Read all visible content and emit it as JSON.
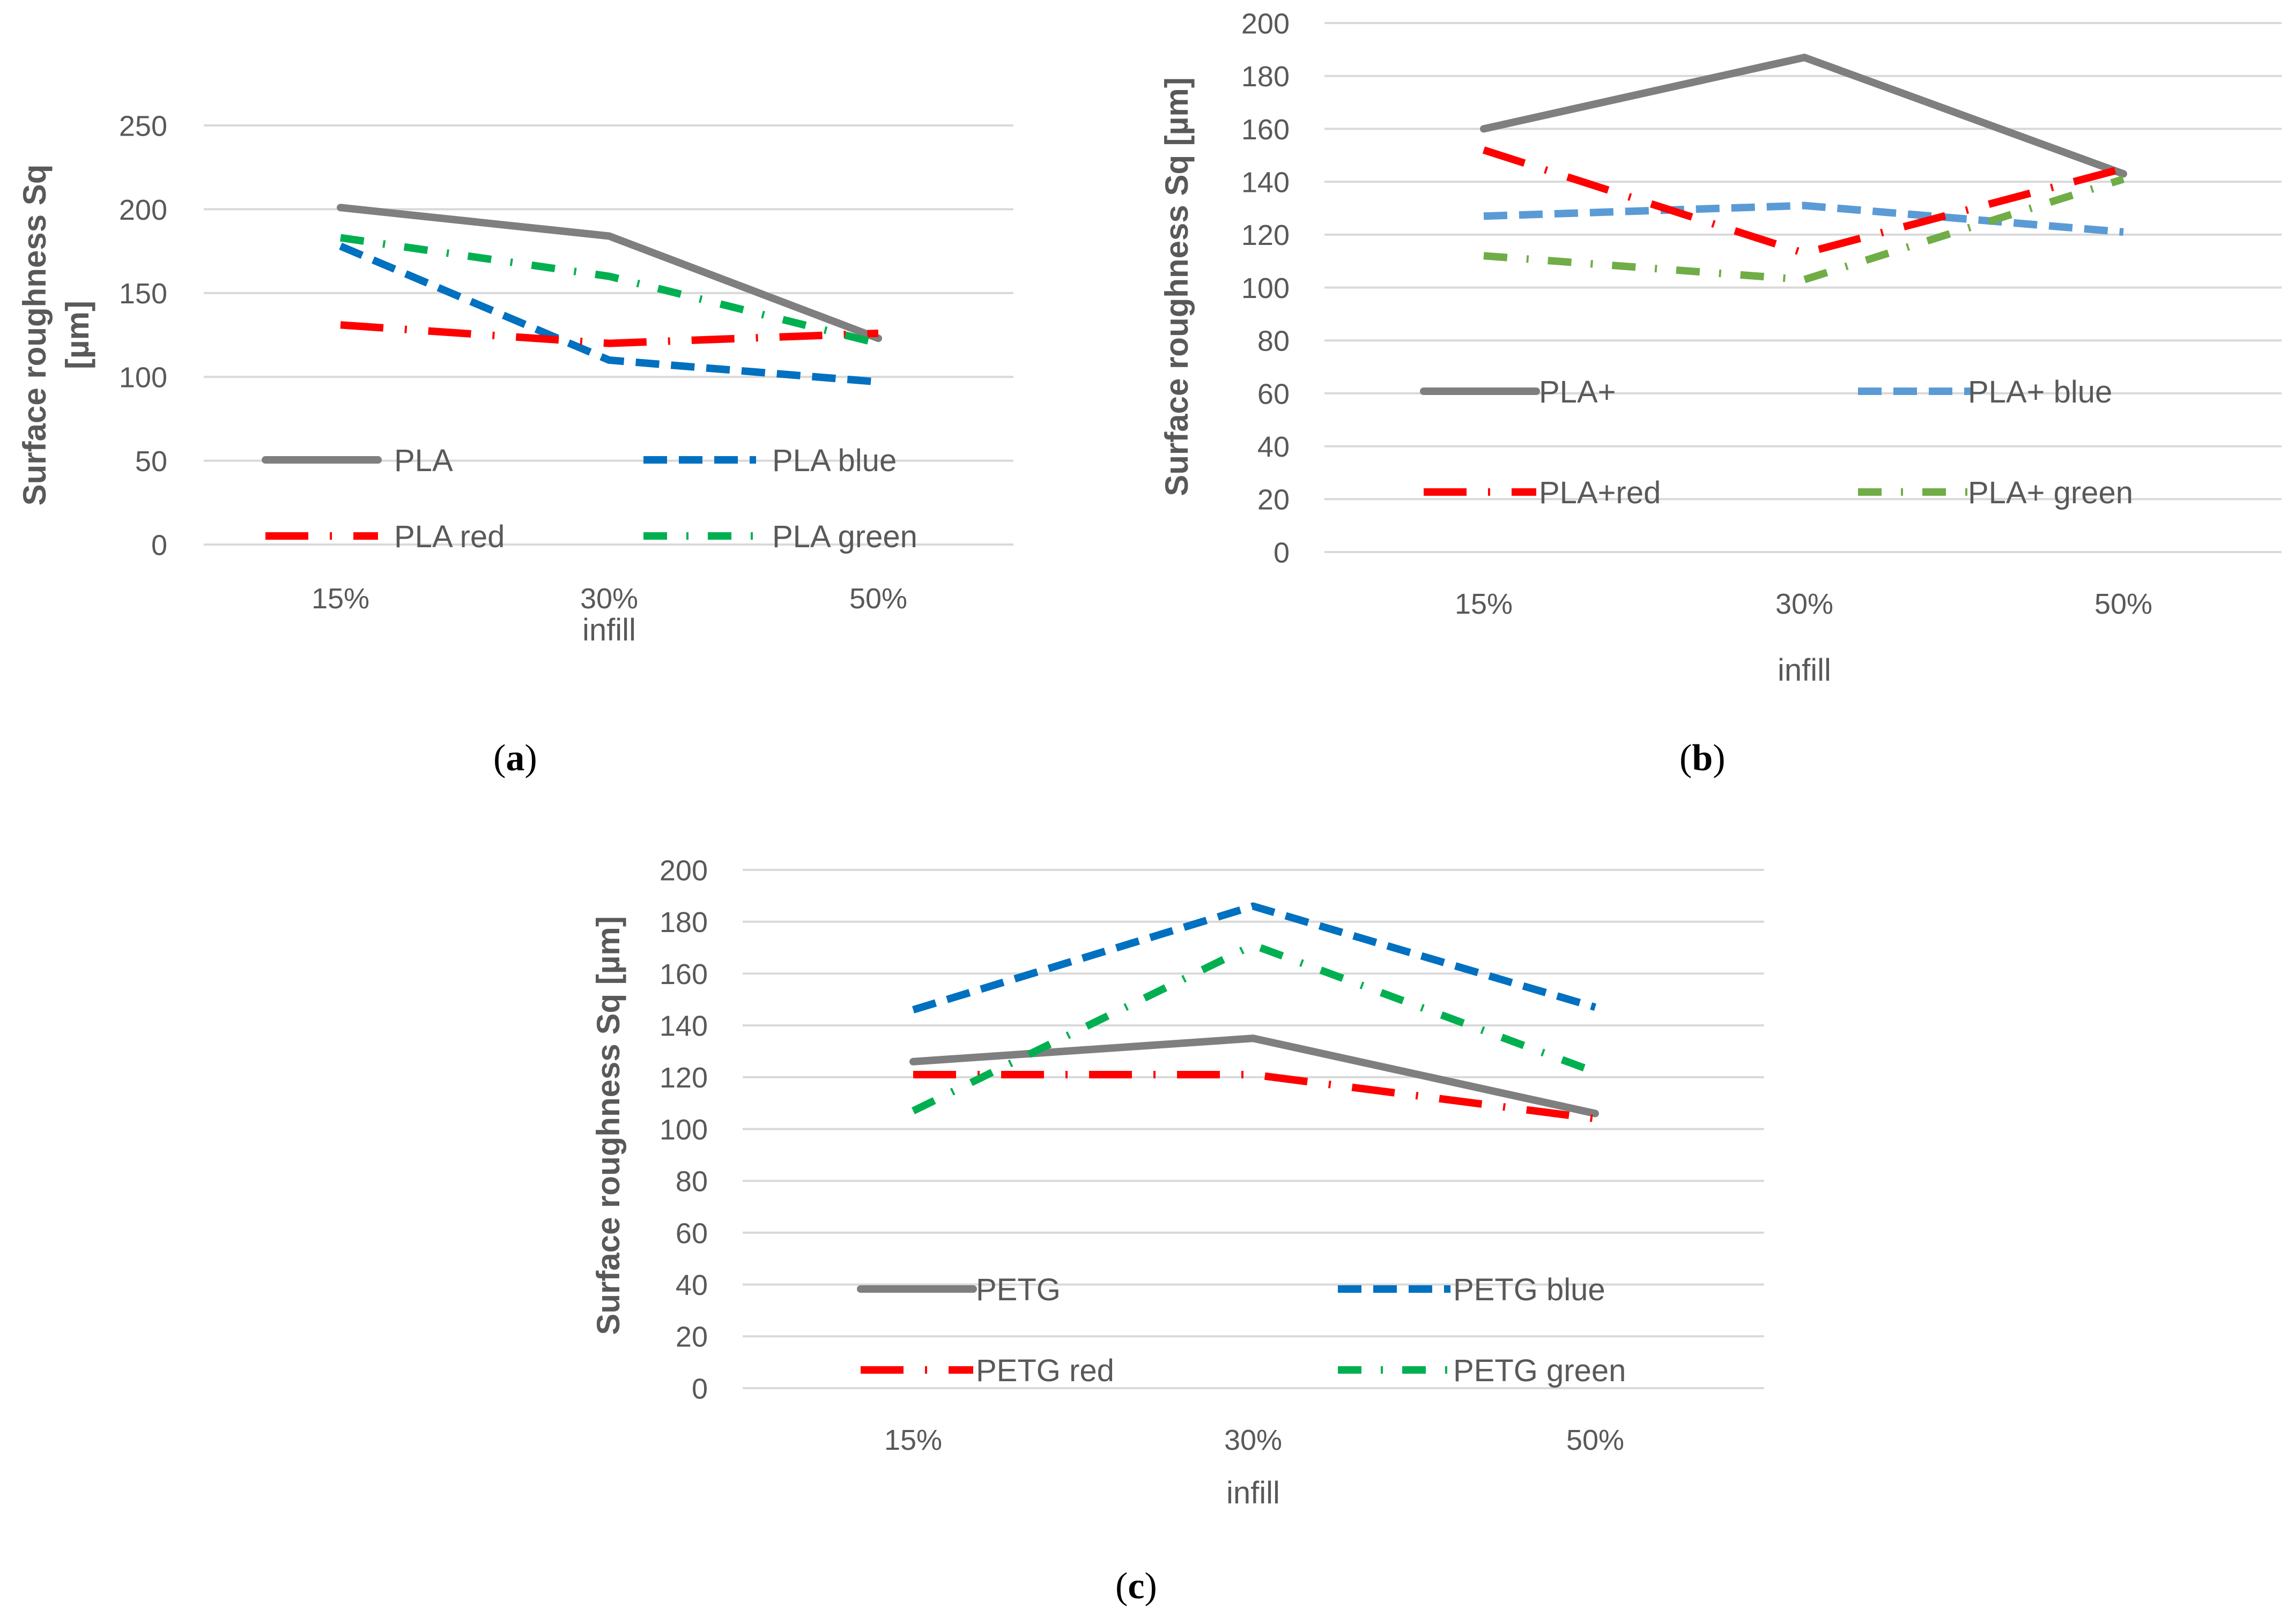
{
  "figure": {
    "captions": [
      "a",
      "b",
      "c"
    ]
  },
  "chart_data": [
    {
      "type": "line",
      "panel": "a",
      "title": "",
      "xlabel": "infill",
      "ylabel": "Surface roughness Sq [µm]",
      "categories": [
        "15%",
        "30%",
        "50%"
      ],
      "yticks": [
        "0",
        "50",
        "100",
        "150",
        "200",
        "250"
      ],
      "ylim": [
        0,
        250
      ],
      "grid": true,
      "legend": "bottom-inside",
      "series": [
        {
          "name": "PLA",
          "values": [
            201,
            184,
            123
          ],
          "color": "#7f7f7f",
          "style": "solid"
        },
        {
          "name": "PLA blue",
          "values": [
            178,
            110,
            97
          ],
          "color": "#0070c0",
          "style": "dash"
        },
        {
          "name": "PLA red",
          "values": [
            131,
            120,
            126
          ],
          "color": "#ff0000",
          "style": "longdashdot"
        },
        {
          "name": "PLA green",
          "values": [
            183,
            160,
            120
          ],
          "color": "#00b050",
          "style": "dashdot"
        }
      ]
    },
    {
      "type": "line",
      "panel": "b",
      "title": "",
      "xlabel": "infill",
      "ylabel": "Surface roughness Sq [µm]",
      "categories": [
        "15%",
        "30%",
        "50%"
      ],
      "yticks": [
        "0",
        "20",
        "40",
        "60",
        "80",
        "100",
        "120",
        "140",
        "160",
        "180",
        "200"
      ],
      "ylim": [
        0,
        200
      ],
      "grid": true,
      "legend": "bottom-inside",
      "series": [
        {
          "name": "PLA+",
          "values": [
            160,
            187,
            143
          ],
          "color": "#7f7f7f",
          "style": "solid"
        },
        {
          "name": "PLA+ blue",
          "values": [
            127,
            131,
            121
          ],
          "color": "#5b9bd5",
          "style": "dash"
        },
        {
          "name": "PLA+red",
          "values": [
            152,
            113,
            145
          ],
          "color": "#ff0000",
          "style": "longdashdot"
        },
        {
          "name": "PLA+ green",
          "values": [
            112,
            103,
            141
          ],
          "color": "#70ad47",
          "style": "dashdot"
        }
      ]
    },
    {
      "type": "line",
      "panel": "c",
      "title": "",
      "xlabel": "infill",
      "ylabel": "Surface roughness Sq [µm]",
      "categories": [
        "15%",
        "30%",
        "50%"
      ],
      "yticks": [
        "0",
        "20",
        "40",
        "60",
        "80",
        "100",
        "120",
        "140",
        "160",
        "180",
        "200"
      ],
      "ylim": [
        0,
        200
      ],
      "grid": true,
      "legend": "bottom-inside",
      "series": [
        {
          "name": "PETG",
          "values": [
            126,
            135,
            106
          ],
          "color": "#7f7f7f",
          "style": "solid"
        },
        {
          "name": "PETG blue",
          "values": [
            146,
            186,
            147
          ],
          "color": "#0070c0",
          "style": "dash"
        },
        {
          "name": "PETG red",
          "values": [
            121,
            121,
            104
          ],
          "color": "#ff0000",
          "style": "longdashdot"
        },
        {
          "name": "PETG green",
          "values": [
            107,
            171,
            122
          ],
          "color": "#00b050",
          "style": "dashdot"
        }
      ]
    }
  ]
}
